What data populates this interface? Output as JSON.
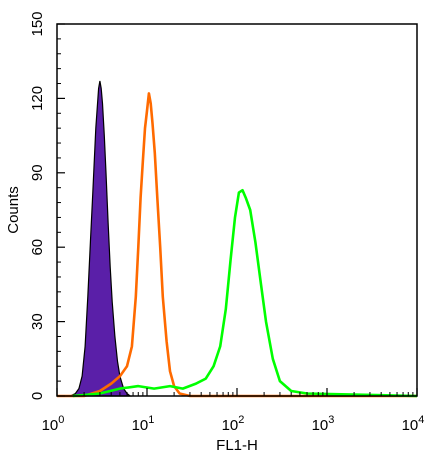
{
  "chart_data": {
    "type": "area",
    "xlabel": "FL1-H",
    "ylabel": "Counts",
    "x_scale": "log",
    "xlim": [
      1,
      10000
    ],
    "ylim": [
      0,
      150
    ],
    "x_ticks": [
      {
        "value": 1,
        "base": "10",
        "exp": "0"
      },
      {
        "value": 10,
        "base": "10",
        "exp": "1"
      },
      {
        "value": 100,
        "base": "10",
        "exp": "2"
      },
      {
        "value": 1000,
        "base": "10",
        "exp": "3"
      },
      {
        "value": 10000,
        "base": "10",
        "exp": "4"
      }
    ],
    "y_ticks": [
      "0",
      "30",
      "60",
      "90",
      "120",
      "150"
    ],
    "grid": false,
    "series": [
      {
        "style": "filled",
        "color": "#5a1fa8",
        "stroke": "#000000",
        "points": [
          [
            1.4,
            0
          ],
          [
            1.6,
            1
          ],
          [
            1.75,
            3
          ],
          [
            1.9,
            8
          ],
          [
            2.05,
            20
          ],
          [
            2.2,
            40
          ],
          [
            2.35,
            62
          ],
          [
            2.5,
            82
          ],
          [
            2.6,
            95
          ],
          [
            2.7,
            108
          ],
          [
            2.8,
            116
          ],
          [
            2.9,
            124
          ],
          [
            3.0,
            127
          ],
          [
            3.1,
            124
          ],
          [
            3.2,
            118
          ],
          [
            3.35,
            105
          ],
          [
            3.5,
            90
          ],
          [
            3.7,
            70
          ],
          [
            3.9,
            52
          ],
          [
            4.1,
            38
          ],
          [
            4.4,
            24
          ],
          [
            4.7,
            14
          ],
          [
            5.0,
            8
          ],
          [
            5.5,
            3
          ],
          [
            6.0,
            1
          ],
          [
            6.5,
            0
          ]
        ]
      },
      {
        "style": "line",
        "color": "#ff6a00",
        "points": [
          [
            1,
            0
          ],
          [
            2,
            0
          ],
          [
            3,
            2
          ],
          [
            4,
            5
          ],
          [
            5,
            8
          ],
          [
            6,
            12
          ],
          [
            6.8,
            20
          ],
          [
            7.5,
            40
          ],
          [
            8.0,
            60
          ],
          [
            8.5,
            80
          ],
          [
            9.0,
            95
          ],
          [
            9.5,
            108
          ],
          [
            10.0,
            115
          ],
          [
            10.5,
            122
          ],
          [
            11.0,
            118
          ],
          [
            11.5,
            110
          ],
          [
            12.2,
            98
          ],
          [
            13.0,
            80
          ],
          [
            14.0,
            60
          ],
          [
            15.0,
            40
          ],
          [
            16.5,
            22
          ],
          [
            18.0,
            10
          ],
          [
            20.0,
            4
          ],
          [
            23.0,
            1
          ],
          [
            30.0,
            0
          ],
          [
            10000,
            0
          ]
        ]
      },
      {
        "style": "line",
        "color": "#00ff00",
        "points": [
          [
            1.5,
            0
          ],
          [
            3,
            1
          ],
          [
            5,
            3
          ],
          [
            8,
            4
          ],
          [
            12,
            3
          ],
          [
            18,
            4
          ],
          [
            25,
            3
          ],
          [
            35,
            5
          ],
          [
            45,
            7
          ],
          [
            55,
            12
          ],
          [
            65,
            20
          ],
          [
            75,
            35
          ],
          [
            85,
            55
          ],
          [
            95,
            72
          ],
          [
            105,
            82
          ],
          [
            115,
            83
          ],
          [
            125,
            80
          ],
          [
            140,
            75
          ],
          [
            160,
            62
          ],
          [
            185,
            45
          ],
          [
            210,
            30
          ],
          [
            250,
            15
          ],
          [
            300,
            6
          ],
          [
            400,
            2
          ],
          [
            600,
            1
          ],
          [
            10000,
            0
          ]
        ]
      }
    ]
  }
}
